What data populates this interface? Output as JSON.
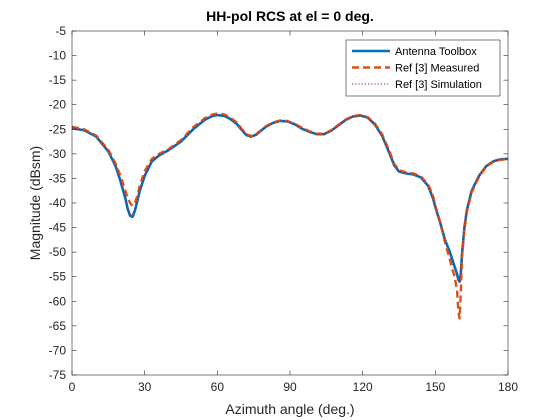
{
  "chart_data": {
    "type": "line",
    "title": "HH-pol RCS at el = 0 deg.",
    "xlabel": "Azimuth angle (deg.)",
    "ylabel": "Magnitude (dBsm)",
    "xlim": [
      0,
      180
    ],
    "ylim": [
      -75,
      -5
    ],
    "xticks": [
      "0",
      "30",
      "60",
      "90",
      "120",
      "150",
      "180"
    ],
    "yticks": [
      "-5",
      "-10",
      "-15",
      "-20",
      "-25",
      "-30",
      "-35",
      "-40",
      "-45",
      "-50",
      "-55",
      "-60",
      "-65",
      "-70",
      "-75"
    ],
    "grid": false,
    "legend": "top-right",
    "series": [
      {
        "name": "Antenna Toolbox",
        "color": "#0072BD",
        "style": "solid",
        "x": [
          0,
          5,
          10,
          15,
          18,
          20,
          22,
          23,
          24,
          25,
          26,
          27,
          28,
          30,
          33,
          36,
          40,
          45,
          50,
          55,
          58,
          60,
          63,
          65,
          68,
          70,
          72,
          74,
          76,
          78,
          80,
          83,
          86,
          89,
          92,
          95,
          98,
          101,
          104,
          107,
          110,
          113,
          116,
          119,
          122,
          125,
          128,
          131,
          133,
          135,
          138,
          141,
          144,
          147,
          149,
          150,
          152,
          154,
          156,
          157,
          158,
          159,
          159.5,
          160,
          160.5,
          161,
          162,
          163,
          165,
          168,
          171,
          174,
          177,
          180
        ],
        "y": [
          -24.8,
          -25.2,
          -26.5,
          -29.5,
          -32.5,
          -35.5,
          -39.0,
          -41.2,
          -42.6,
          -42.8,
          -41.5,
          -39.5,
          -37.5,
          -34.5,
          -31.5,
          -30.3,
          -29.2,
          -27.5,
          -25.0,
          -23.0,
          -22.3,
          -22.1,
          -22.3,
          -22.8,
          -23.9,
          -25.1,
          -26.2,
          -26.5,
          -26.1,
          -25.3,
          -24.5,
          -23.7,
          -23.3,
          -23.4,
          -24.0,
          -24.9,
          -25.5,
          -26.0,
          -26.0,
          -25.3,
          -24.2,
          -23.1,
          -22.4,
          -22.2,
          -22.6,
          -24.0,
          -26.3,
          -29.8,
          -32.3,
          -33.6,
          -34.0,
          -34.2,
          -34.8,
          -36.5,
          -39.0,
          -40.8,
          -44.0,
          -47.5,
          -50.0,
          -51.5,
          -53.0,
          -54.5,
          -55.5,
          -56.0,
          -54.5,
          -50.5,
          -45.0,
          -41.5,
          -37.5,
          -34.5,
          -32.5,
          -31.5,
          -31.1,
          -31.0
        ]
      },
      {
        "name": "Ref [3] Measured",
        "color": "#D95319",
        "style": "dashed",
        "x": [
          0,
          5,
          10,
          15,
          18,
          20,
          22,
          23,
          24,
          25,
          26,
          27,
          28,
          30,
          33,
          36,
          40,
          45,
          50,
          55,
          58,
          60,
          63,
          65,
          68,
          70,
          72,
          74,
          76,
          78,
          80,
          83,
          86,
          89,
          92,
          95,
          98,
          101,
          104,
          107,
          110,
          113,
          116,
          119,
          122,
          125,
          128,
          131,
          133,
          135,
          138,
          141,
          144,
          147,
          149,
          150,
          152,
          154,
          156,
          157,
          158,
          159,
          159.5,
          160,
          160.5,
          161,
          162,
          163,
          165,
          168,
          171,
          174,
          177,
          180
        ],
        "y": [
          -24.5,
          -25.0,
          -26.3,
          -29.2,
          -32.0,
          -34.5,
          -37.5,
          -39.0,
          -40.0,
          -40.6,
          -40.0,
          -38.5,
          -36.5,
          -33.5,
          -31.0,
          -30.0,
          -29.0,
          -27.2,
          -24.6,
          -22.7,
          -22.0,
          -21.8,
          -22.0,
          -22.5,
          -23.6,
          -24.9,
          -26.0,
          -26.4,
          -26.0,
          -25.2,
          -24.4,
          -23.6,
          -23.2,
          -23.3,
          -23.9,
          -24.7,
          -25.4,
          -25.9,
          -25.9,
          -25.2,
          -24.1,
          -23.0,
          -22.3,
          -22.1,
          -22.5,
          -23.8,
          -26.0,
          -29.4,
          -32.0,
          -33.3,
          -33.8,
          -34.0,
          -34.6,
          -36.2,
          -38.5,
          -40.5,
          -44.0,
          -48.0,
          -51.5,
          -53.5,
          -55.0,
          -58.0,
          -62.0,
          -63.5,
          -58.5,
          -51.0,
          -45.5,
          -41.8,
          -37.8,
          -34.7,
          -32.6,
          -31.6,
          -31.2,
          -31.1
        ]
      },
      {
        "name": "Ref [3] Simulation",
        "color": "#A2142F",
        "style": "dotted",
        "x": [
          0,
          5,
          10,
          15,
          18,
          20,
          22,
          23,
          24,
          25,
          26,
          27,
          28,
          30,
          33,
          36,
          40,
          45,
          50,
          55,
          58,
          60,
          63,
          65,
          68,
          70,
          72,
          74,
          76,
          78,
          80,
          83,
          86,
          89,
          92,
          95,
          98,
          101,
          104,
          107,
          110,
          113,
          116,
          119,
          122,
          125,
          128,
          131,
          133,
          135,
          138,
          141,
          144,
          147,
          149,
          150,
          152,
          154,
          156,
          157,
          158,
          159,
          159.5,
          160,
          160.5,
          161,
          162,
          163,
          165,
          168,
          171,
          174,
          177,
          180
        ],
        "y": [
          -24.7,
          -25.1,
          -26.4,
          -29.4,
          -32.3,
          -35.2,
          -38.7,
          -41.0,
          -42.3,
          -42.5,
          -41.2,
          -39.2,
          -37.2,
          -34.2,
          -31.3,
          -30.2,
          -29.1,
          -27.4,
          -24.9,
          -22.9,
          -22.2,
          -22.0,
          -22.2,
          -22.7,
          -23.8,
          -25.0,
          -26.1,
          -26.5,
          -26.1,
          -25.3,
          -24.5,
          -23.7,
          -23.3,
          -23.4,
          -24.0,
          -24.8,
          -25.5,
          -26.0,
          -26.0,
          -25.3,
          -24.2,
          -23.1,
          -22.4,
          -22.2,
          -22.6,
          -23.9,
          -26.2,
          -29.7,
          -32.2,
          -33.5,
          -33.9,
          -34.1,
          -34.7,
          -36.4,
          -38.9,
          -40.7,
          -44.0,
          -47.6,
          -50.2,
          -51.8,
          -53.5,
          -55.2,
          -56.0,
          -55.8,
          -54.0,
          -50.2,
          -45.0,
          -41.5,
          -37.5,
          -34.5,
          -32.5,
          -31.5,
          -31.1,
          -31.0
        ]
      }
    ]
  }
}
